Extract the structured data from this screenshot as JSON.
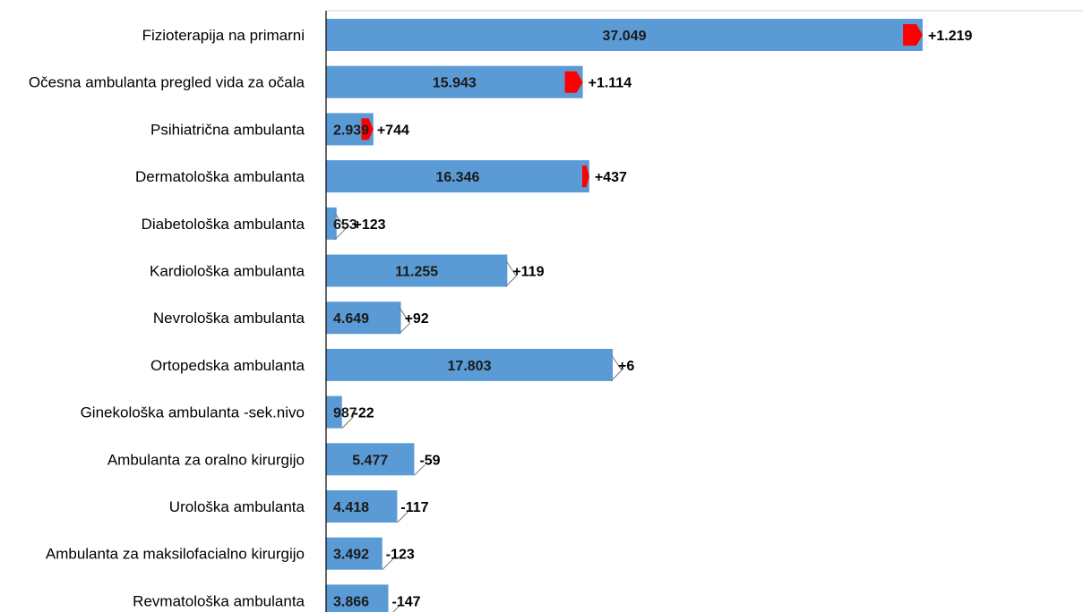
{
  "chart_data": {
    "type": "bar",
    "orientation": "horizontal",
    "categories": [
      "Fizioterapija na primarni",
      "Očesna ambulanta  pregled vida za očala",
      "Psihiatrična ambulanta",
      "Dermatološka ambulanta",
      "Diabetološka ambulanta",
      "Kardiološka ambulanta",
      "Nevrološka ambulanta",
      "Ortopedska ambulanta",
      "Ginekološka ambulanta -sek.nivo",
      "Ambulanta za oralno kirurgijo",
      "Urološka ambulanta",
      "Ambulanta za maksilofacialno kirurgijo",
      "Revmatološka ambulanta"
    ],
    "values": [
      37049,
      15943,
      2939,
      16346,
      653,
      11255,
      4649,
      17803,
      987,
      5477,
      4418,
      3492,
      3866
    ],
    "value_labels": [
      "37.049",
      "15.943",
      "2.939",
      "16.346",
      "653",
      "11.255",
      "4.649",
      "17.803",
      "987",
      "5.477",
      "4.418",
      "3.492",
      "3.866"
    ],
    "changes": [
      1219,
      1114,
      744,
      437,
      123,
      119,
      92,
      6,
      -22,
      -59,
      -117,
      -123,
      -147
    ],
    "change_labels": [
      "+1.219",
      "+1.114",
      "+744",
      "+437",
      "+123",
      "+119",
      "+92",
      "+6",
      "-22",
      "-59",
      "-117",
      "-123",
      "-147"
    ],
    "xlim": [
      0,
      40000
    ],
    "grid": false,
    "colors": {
      "bar": "#5b9bd5",
      "increase": "#ff0000",
      "decrease": "#1e8a3c",
      "axis": "#000000"
    }
  }
}
